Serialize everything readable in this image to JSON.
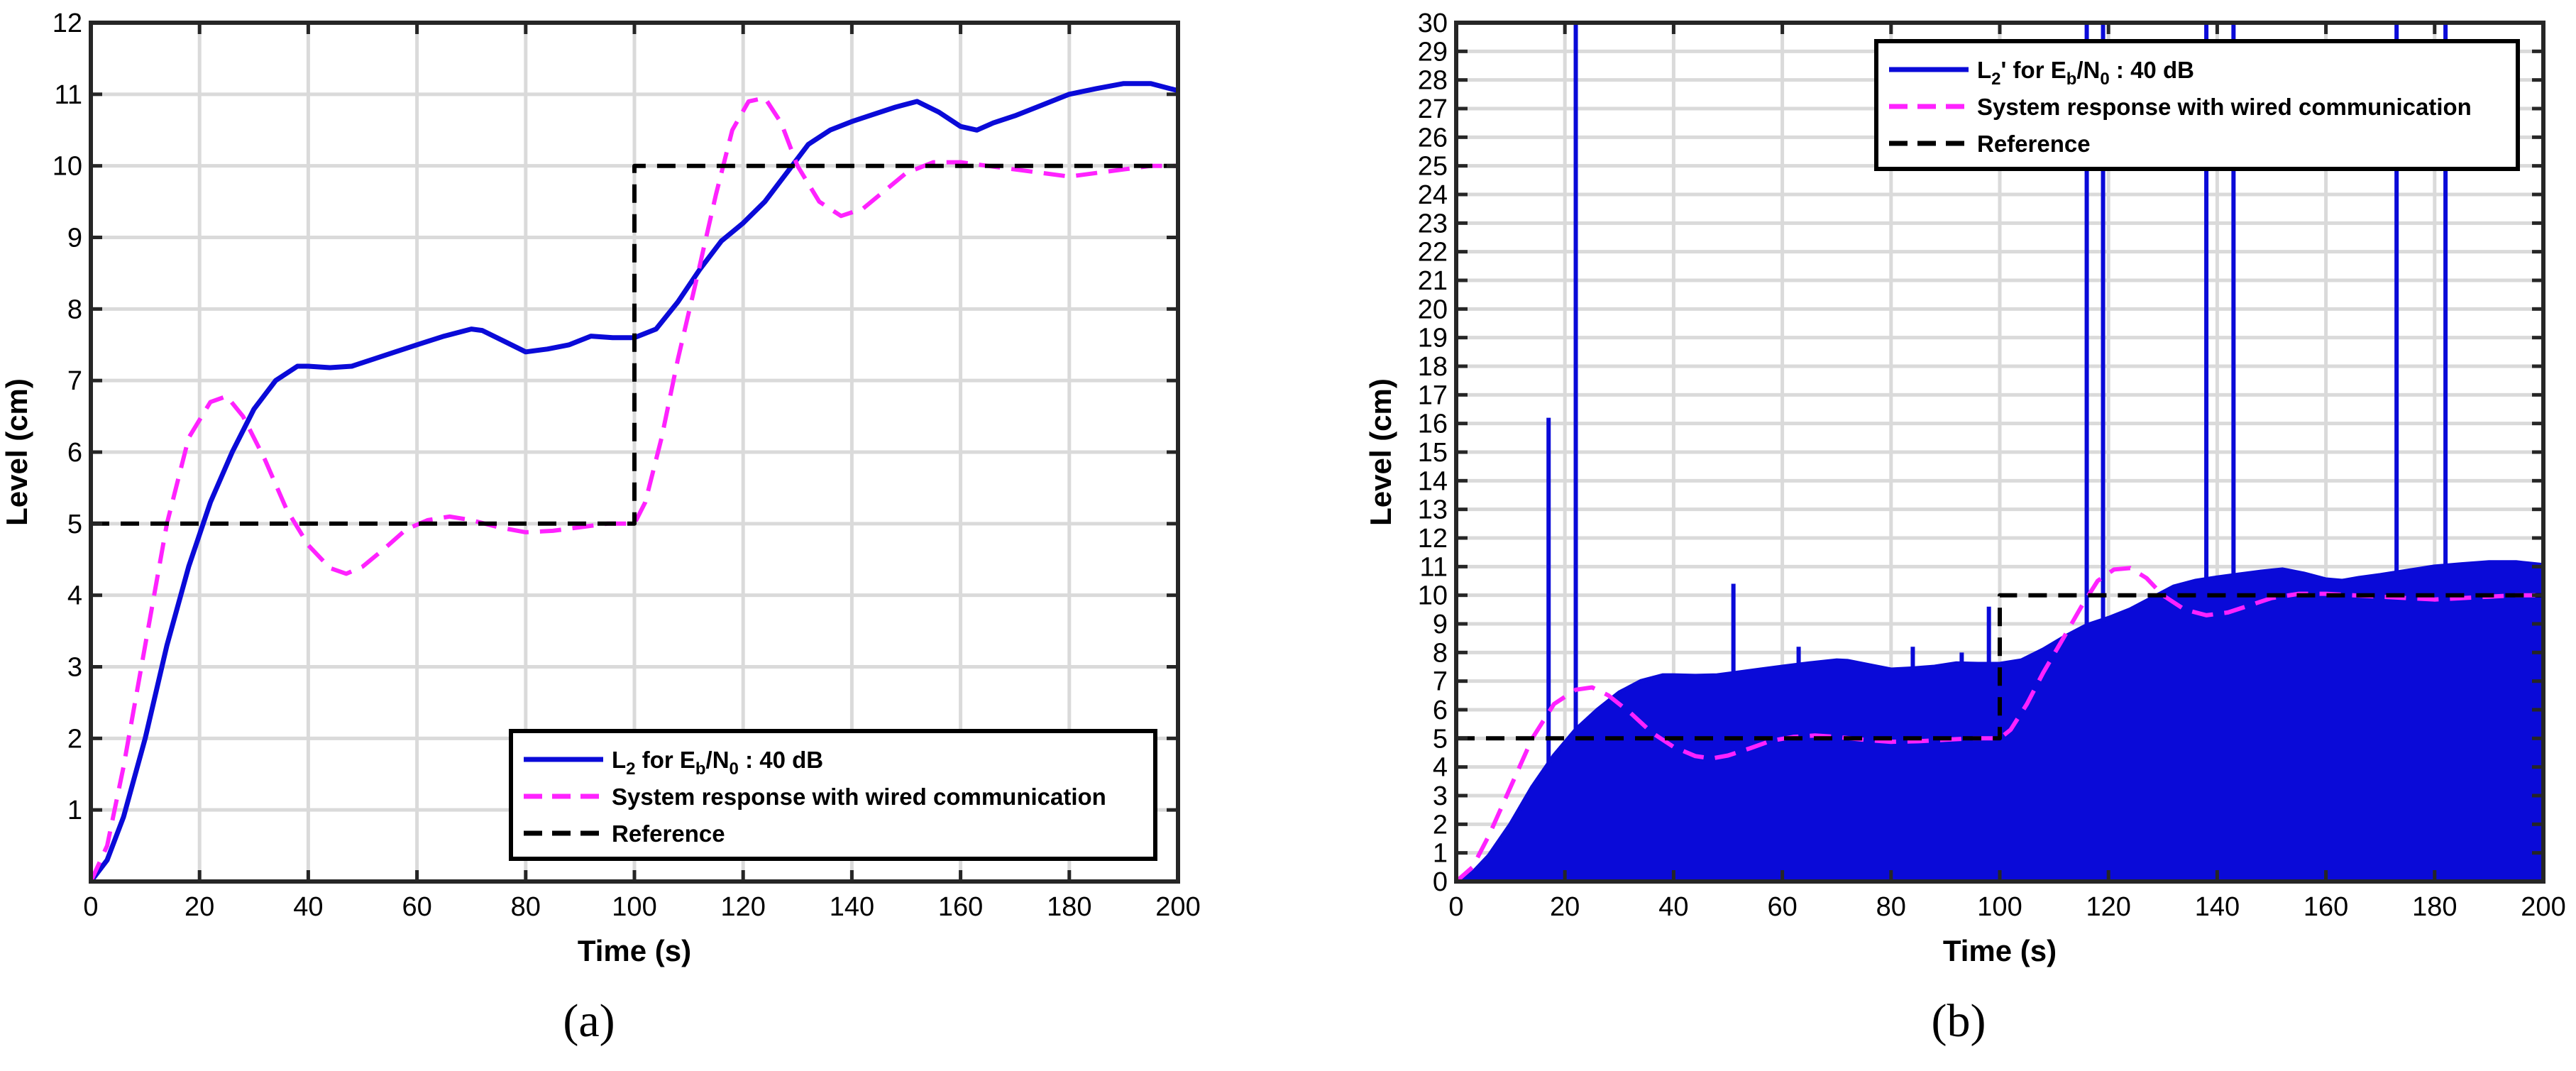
{
  "colors": {
    "l2": "#0a0ad8",
    "wired": "#ff22ff",
    "reference": "#000000",
    "grid": "#dadada"
  },
  "chart_data": [
    {
      "type": "line",
      "panel_label": "(a)",
      "xlabel": "Time (s)",
      "ylabel": "Level (cm)",
      "xlim": [
        0,
        200
      ],
      "ylim": [
        0,
        12
      ],
      "xticks": [
        0,
        20,
        40,
        60,
        80,
        100,
        120,
        140,
        160,
        180,
        200
      ],
      "yticks": [
        1,
        2,
        3,
        4,
        5,
        6,
        7,
        8,
        9,
        10,
        11,
        12
      ],
      "grid": true,
      "legend_position": "bottom-right",
      "series": [
        {
          "key": "l2",
          "style": "solid",
          "name": "L",
          "legend_parts": [
            {
              "t": "L"
            },
            {
              "t": "2",
              "sub": true
            },
            {
              "t": " for E"
            },
            {
              "t": "b",
              "sub": true
            },
            {
              "t": "/N"
            },
            {
              "t": "0",
              "sub": true
            },
            {
              "t": " : 40 dB"
            }
          ],
          "x": [
            0,
            3,
            6,
            10,
            14,
            18,
            22,
            26,
            30,
            34,
            38,
            40,
            44,
            48,
            52,
            56,
            60,
            65,
            70,
            72,
            76,
            80,
            84,
            88,
            92,
            96,
            100,
            104,
            108,
            112,
            116,
            120,
            124,
            128,
            132,
            136,
            140,
            144,
            148,
            152,
            156,
            160,
            163,
            166,
            170,
            175,
            180,
            185,
            190,
            195,
            200
          ],
          "y": [
            0,
            0.3,
            0.9,
            2.0,
            3.3,
            4.4,
            5.3,
            6.0,
            6.6,
            7.0,
            7.2,
            7.2,
            7.18,
            7.2,
            7.3,
            7.4,
            7.5,
            7.62,
            7.72,
            7.7,
            7.55,
            7.4,
            7.44,
            7.5,
            7.62,
            7.6,
            7.6,
            7.72,
            8.1,
            8.55,
            8.95,
            9.2,
            9.5,
            9.9,
            10.3,
            10.5,
            10.62,
            10.72,
            10.82,
            10.9,
            10.75,
            10.55,
            10.5,
            10.6,
            10.7,
            10.85,
            11.0,
            11.08,
            11.15,
            11.15,
            11.05
          ]
        },
        {
          "key": "wired",
          "style": "dashed",
          "name": "System response with wired communication",
          "legend_parts": [
            {
              "t": "System response with wired communication"
            }
          ],
          "x": [
            0,
            3,
            6,
            10,
            14,
            18,
            22,
            25,
            28,
            32,
            36,
            40,
            44,
            47,
            50,
            54,
            58,
            62,
            66,
            70,
            75,
            80,
            85,
            90,
            95,
            100,
            102,
            105,
            108,
            112,
            115,
            118,
            121,
            124,
            127,
            130,
            134,
            138,
            142,
            146,
            150,
            155,
            160,
            165,
            170,
            175,
            180,
            185,
            190,
            195,
            200
          ],
          "y": [
            0,
            0.5,
            1.6,
            3.3,
            5.0,
            6.2,
            6.7,
            6.78,
            6.5,
            5.9,
            5.2,
            4.7,
            4.38,
            4.3,
            4.4,
            4.65,
            4.92,
            5.05,
            5.1,
            5.05,
            4.95,
            4.88,
            4.9,
            4.95,
            5.0,
            5.0,
            5.3,
            6.2,
            7.3,
            8.6,
            9.6,
            10.5,
            10.9,
            10.95,
            10.6,
            10.0,
            9.5,
            9.3,
            9.4,
            9.65,
            9.9,
            10.05,
            10.05,
            10.0,
            9.95,
            9.9,
            9.85,
            9.9,
            9.95,
            10.0,
            10.0
          ]
        },
        {
          "key": "reference",
          "style": "dashed",
          "name": "Reference",
          "legend_parts": [
            {
              "t": "Reference"
            }
          ],
          "x": [
            0,
            100,
            100,
            200
          ],
          "y": [
            5,
            5,
            10,
            10
          ]
        }
      ]
    },
    {
      "type": "line",
      "panel_label": "(b)",
      "xlabel": "Time (s)",
      "ylabel": "Level (cm)",
      "xlim": [
        0,
        200
      ],
      "ylim": [
        0,
        30
      ],
      "xticks": [
        0,
        20,
        40,
        60,
        80,
        100,
        120,
        140,
        160,
        180,
        200
      ],
      "yticks": [
        0,
        1,
        2,
        3,
        4,
        5,
        6,
        7,
        8,
        9,
        10,
        11,
        12,
        13,
        14,
        15,
        16,
        17,
        18,
        19,
        20,
        21,
        22,
        23,
        24,
        25,
        26,
        27,
        28,
        29,
        30
      ],
      "grid": true,
      "legend_position": "top-right",
      "series": [
        {
          "key": "l2",
          "style": "solid-filled",
          "name": "L",
          "legend_parts": [
            {
              "t": "L"
            },
            {
              "t": "2",
              "sub": true
            },
            {
              "t": "' for E"
            },
            {
              "t": "b",
              "sub": true
            },
            {
              "t": "/N"
            },
            {
              "t": "0",
              "sub": true
            },
            {
              "t": " : 40 dB"
            }
          ],
          "x": [
            0,
            3,
            6,
            10,
            14,
            18,
            22,
            26,
            30,
            34,
            38,
            40,
            44,
            48,
            52,
            56,
            60,
            65,
            70,
            72,
            76,
            80,
            84,
            88,
            92,
            96,
            100,
            104,
            108,
            112,
            116,
            120,
            124,
            128,
            132,
            136,
            140,
            144,
            148,
            152,
            156,
            160,
            163,
            166,
            170,
            175,
            180,
            185,
            190,
            195,
            200
          ],
          "y": [
            0,
            0.3,
            0.9,
            2.0,
            3.3,
            4.4,
            5.3,
            6.0,
            6.6,
            7.0,
            7.2,
            7.2,
            7.18,
            7.2,
            7.3,
            7.4,
            7.5,
            7.62,
            7.72,
            7.7,
            7.55,
            7.4,
            7.44,
            7.5,
            7.62,
            7.6,
            7.6,
            7.72,
            8.1,
            8.55,
            8.95,
            9.2,
            9.5,
            9.9,
            10.3,
            10.5,
            10.62,
            10.72,
            10.82,
            10.9,
            10.75,
            10.55,
            10.5,
            10.6,
            10.7,
            10.85,
            11.0,
            11.08,
            11.15,
            11.15,
            11.05
          ],
          "spikes": [
            {
              "x": 17,
              "y": 16.2
            },
            {
              "x": 22,
              "y": 30
            },
            {
              "x": 51,
              "y": 10.4
            },
            {
              "x": 63,
              "y": 8.2
            },
            {
              "x": 84,
              "y": 8.2
            },
            {
              "x": 93,
              "y": 8.0
            },
            {
              "x": 98,
              "y": 9.6
            },
            {
              "x": 116,
              "y": 30
            },
            {
              "x": 119,
              "y": 30
            },
            {
              "x": 138,
              "y": 30
            },
            {
              "x": 143,
              "y": 30
            },
            {
              "x": 173,
              "y": 30
            },
            {
              "x": 182,
              "y": 30
            }
          ]
        },
        {
          "key": "wired",
          "style": "dashed",
          "name": "System response with wired communication",
          "legend_parts": [
            {
              "t": "System response with wired communication"
            }
          ],
          "x": [
            0,
            3,
            6,
            10,
            14,
            18,
            22,
            25,
            28,
            32,
            36,
            40,
            44,
            47,
            50,
            54,
            58,
            62,
            66,
            70,
            75,
            80,
            85,
            90,
            95,
            100,
            102,
            105,
            108,
            112,
            115,
            118,
            121,
            124,
            127,
            130,
            134,
            138,
            142,
            146,
            150,
            155,
            160,
            165,
            170,
            175,
            180,
            185,
            190,
            195,
            200
          ],
          "y": [
            0,
            0.5,
            1.6,
            3.3,
            5.0,
            6.2,
            6.7,
            6.78,
            6.5,
            5.9,
            5.2,
            4.7,
            4.38,
            4.3,
            4.4,
            4.65,
            4.92,
            5.05,
            5.1,
            5.05,
            4.95,
            4.88,
            4.9,
            4.95,
            5.0,
            5.0,
            5.3,
            6.2,
            7.3,
            8.6,
            9.6,
            10.5,
            10.9,
            10.95,
            10.6,
            10.0,
            9.5,
            9.3,
            9.4,
            9.65,
            9.9,
            10.05,
            10.05,
            10.0,
            9.95,
            9.9,
            9.85,
            9.9,
            9.95,
            10.0,
            10.0
          ]
        },
        {
          "key": "reference",
          "style": "dashed",
          "name": "Reference",
          "legend_parts": [
            {
              "t": "Reference"
            }
          ],
          "x": [
            0,
            22,
            22,
            100,
            100,
            200
          ],
          "y": [
            5,
            5,
            5,
            5,
            10,
            10
          ]
        }
      ]
    }
  ]
}
